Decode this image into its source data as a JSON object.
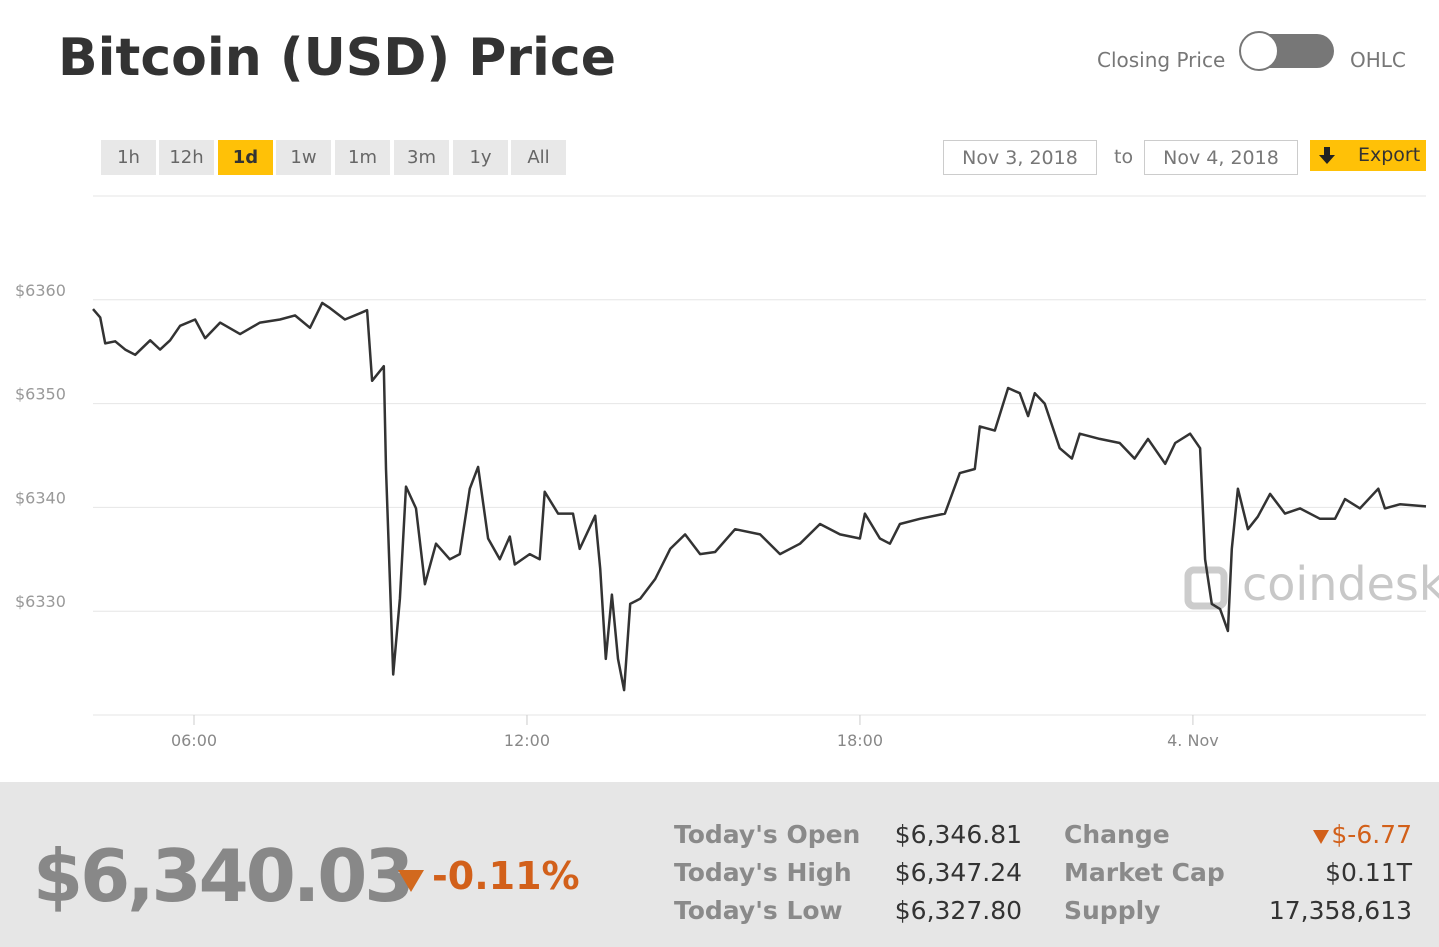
{
  "header": {
    "title": "Bitcoin (USD) Price",
    "toggle_left": "Closing Price",
    "toggle_right": "OHLC"
  },
  "controls": {
    "ranges": [
      {
        "label": "1h"
      },
      {
        "label": "12h"
      },
      {
        "label": "1d",
        "active": true
      },
      {
        "label": "1w"
      },
      {
        "label": "1m"
      },
      {
        "label": "3m"
      },
      {
        "label": "1y"
      },
      {
        "label": "All"
      }
    ],
    "date_from": "Nov 3, 2018",
    "date_sep": "to",
    "date_to": "Nov 4, 2018",
    "export": "Export"
  },
  "chart_data": {
    "type": "line",
    "watermark": "coindesk",
    "x": [
      4.18,
      4.31,
      4.4,
      4.58,
      4.76,
      4.94,
      5.21,
      5.39,
      5.57,
      5.75,
      6.02,
      6.2,
      6.47,
      6.83,
      7.19,
      7.55,
      7.82,
      8.09,
      8.31,
      8.45,
      8.72,
      8.99,
      9.12,
      9.21,
      9.42,
      9.46,
      9.59,
      9.71,
      9.82,
      10.0,
      10.16,
      10.36,
      10.61,
      10.79,
      10.97,
      11.12,
      11.3,
      11.51,
      11.69,
      11.78,
      12.05,
      12.23,
      12.32,
      12.56,
      12.83,
      12.95,
      13.23,
      13.32,
      13.42,
      13.53,
      13.64,
      13.75,
      13.86,
      14.04,
      14.31,
      14.58,
      14.85,
      15.12,
      15.39,
      15.75,
      16.2,
      16.56,
      16.92,
      17.28,
      17.64,
      18.0,
      18.09,
      18.36,
      18.54,
      18.72,
      19.08,
      19.53,
      19.8,
      20.07,
      20.16,
      20.43,
      20.67,
      20.88,
      21.03,
      21.15,
      21.33,
      21.6,
      21.82,
      21.96,
      22.32,
      22.68,
      22.95,
      23.19,
      23.5,
      23.68,
      23.95,
      24.13,
      24.22,
      24.34,
      24.49,
      24.63,
      24.7,
      24.81,
      24.99,
      25.17,
      25.39,
      25.66,
      25.93,
      26.29,
      26.56,
      26.74,
      27.01,
      27.34,
      27.46,
      27.73,
      28.2
    ],
    "series": [
      {
        "color": "#333333",
        "values": [
          6359.1,
          6358.3,
          6355.8,
          6356.0,
          6355.2,
          6354.7,
          6356.1,
          6355.2,
          6356.1,
          6357.5,
          6358.1,
          6356.3,
          6357.8,
          6356.7,
          6357.8,
          6358.1,
          6358.5,
          6357.3,
          6359.7,
          6359.2,
          6358.1,
          6358.7,
          6359.0,
          6352.2,
          6353.6,
          6343.7,
          6323.9,
          6331.2,
          6342.0,
          6339.9,
          6332.6,
          6336.5,
          6335.0,
          6335.5,
          6341.8,
          6343.9,
          6337.0,
          6335.0,
          6337.2,
          6334.5,
          6335.5,
          6335.0,
          6341.5,
          6339.4,
          6339.4,
          6336.0,
          6339.2,
          6334.1,
          6325.4,
          6331.6,
          6325.4,
          6322.4,
          6330.7,
          6331.2,
          6333.1,
          6336.0,
          6337.4,
          6335.5,
          6335.7,
          6337.9,
          6337.4,
          6335.5,
          6336.5,
          6338.4,
          6337.4,
          6337.0,
          6339.4,
          6337.0,
          6336.5,
          6338.4,
          6338.9,
          6339.4,
          6343.3,
          6343.7,
          6347.8,
          6347.4,
          6351.5,
          6351.0,
          6348.8,
          6351.0,
          6350.0,
          6345.7,
          6344.7,
          6347.1,
          6346.6,
          6346.2,
          6344.7,
          6346.6,
          6344.2,
          6346.2,
          6347.1,
          6345.7,
          6335.0,
          6330.7,
          6330.2,
          6328.1,
          6336.0,
          6341.8,
          6337.9,
          6339.1,
          6341.3,
          6339.4,
          6339.9,
          6338.9,
          6338.9,
          6340.8,
          6339.9,
          6341.8,
          6339.9,
          6340.3,
          6340.1
        ]
      }
    ],
    "xlim": [
      4.18,
      28.2
    ],
    "xticks": [
      {
        "value": 6,
        "label": "06:00"
      },
      {
        "value": 12,
        "label": "12:00"
      },
      {
        "value": 18,
        "label": "18:00"
      },
      {
        "value": 24,
        "label": "4. Nov"
      }
    ],
    "ylim": [
      6320,
      6370
    ],
    "yticks": [
      {
        "value": 6330,
        "label": "$6330"
      },
      {
        "value": 6340,
        "label": "$6340"
      },
      {
        "value": 6350,
        "label": "$6350"
      },
      {
        "value": 6360,
        "label": "$6360"
      }
    ],
    "grid": true
  },
  "summary": {
    "price": "$6,340.03",
    "change_pct": "-0.11%",
    "stats": [
      [
        "Today's Open",
        "$6,346.81"
      ],
      [
        "Today's High",
        "$6,347.24"
      ],
      [
        "Today's Low",
        "$6,327.80"
      ],
      [
        "Change",
        "$-6.77"
      ],
      [
        "Market Cap",
        "$0.11T"
      ],
      [
        "Supply",
        "17,358,613"
      ]
    ]
  }
}
